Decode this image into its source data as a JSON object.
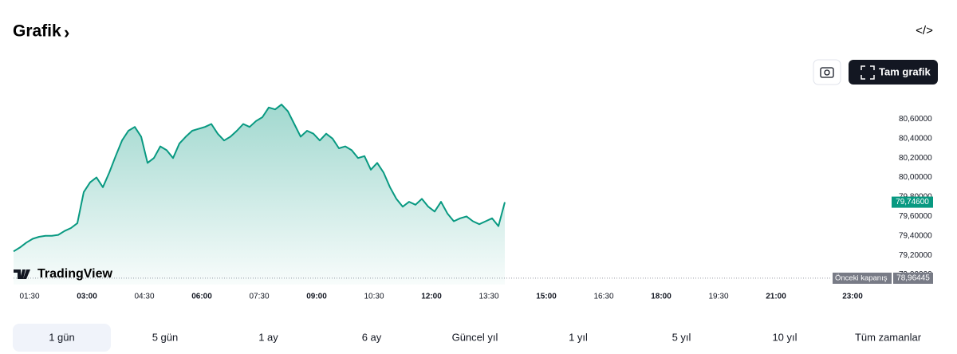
{
  "header": {
    "title": "Grafik",
    "chevron": "›",
    "code_icon": "</>"
  },
  "toolbar": {
    "full_chart": "Tam grafik"
  },
  "brand": "TradingView",
  "ranges": [
    "1 gün",
    "5 gün",
    "1 ay",
    "6 ay",
    "Güncel yıl",
    "1 yıl",
    "5 yıl",
    "10 yıl",
    "Tüm zamanlar"
  ],
  "selected_range": "1 gün",
  "chart_data": {
    "type": "area",
    "color": "#089981",
    "x": [
      "01:05",
      "01:15",
      "01:25",
      "01:35",
      "01:45",
      "01:55",
      "02:05",
      "02:15",
      "02:25",
      "02:35",
      "02:45",
      "02:55",
      "03:05",
      "03:15",
      "03:25",
      "03:35",
      "03:45",
      "03:55",
      "04:05",
      "04:15",
      "04:25",
      "04:35",
      "04:45",
      "04:55",
      "05:05",
      "05:15",
      "05:25",
      "05:35",
      "05:45",
      "05:55",
      "06:05",
      "06:15",
      "06:25",
      "06:35",
      "06:45",
      "06:55",
      "07:05",
      "07:15",
      "07:25",
      "07:35",
      "07:45",
      "07:55",
      "08:05",
      "08:15",
      "08:25",
      "08:35",
      "08:45",
      "08:55",
      "09:05",
      "09:15",
      "09:25",
      "09:35",
      "09:45",
      "09:55",
      "10:05",
      "10:15",
      "10:25",
      "10:35",
      "10:45",
      "10:55",
      "11:05",
      "11:15",
      "11:25",
      "11:35",
      "11:45",
      "11:55",
      "12:05",
      "12:15",
      "12:25",
      "12:35",
      "12:45",
      "12:55",
      "13:05",
      "13:15",
      "13:25",
      "13:35",
      "13:45",
      "13:55"
    ],
    "values": [
      79.24,
      79.28,
      79.33,
      79.37,
      79.39,
      79.4,
      79.4,
      79.41,
      79.45,
      79.48,
      79.53,
      79.85,
      79.95,
      80.0,
      79.9,
      80.05,
      80.22,
      80.38,
      80.48,
      80.52,
      80.42,
      80.15,
      80.2,
      80.32,
      80.28,
      80.2,
      80.35,
      80.42,
      80.48,
      80.5,
      80.52,
      80.55,
      80.45,
      80.38,
      80.42,
      80.48,
      80.55,
      80.52,
      80.58,
      80.62,
      80.72,
      80.7,
      80.75,
      80.68,
      80.55,
      80.42,
      80.48,
      80.45,
      80.38,
      80.45,
      80.4,
      80.3,
      80.32,
      80.28,
      80.2,
      80.22,
      80.08,
      80.15,
      80.05,
      79.9,
      79.78,
      79.7,
      79.75,
      79.72,
      79.78,
      79.7,
      79.65,
      79.75,
      79.63,
      79.55,
      79.58,
      79.6,
      79.55,
      79.52,
      79.55,
      79.58,
      79.5,
      79.746
    ],
    "last_value_label": "79,74600",
    "xlim": [
      "01:05",
      "23:40"
    ],
    "xticks": [
      "01:30",
      "03:00",
      "04:30",
      "06:00",
      "07:30",
      "09:00",
      "10:30",
      "12:00",
      "13:30",
      "15:00",
      "16:30",
      "18:00",
      "19:30",
      "21:00",
      "23:00"
    ],
    "ylim": [
      78.9,
      80.8
    ],
    "yticks": [
      {
        "value": 79.0,
        "label": "79,00000"
      },
      {
        "value": 79.2,
        "label": "79,20000"
      },
      {
        "value": 79.4,
        "label": "79,40000"
      },
      {
        "value": 79.6,
        "label": "79,60000"
      },
      {
        "value": 79.8,
        "label": "79,80000"
      },
      {
        "value": 80.0,
        "label": "80,00000"
      },
      {
        "value": 80.2,
        "label": "80,20000"
      },
      {
        "value": 80.4,
        "label": "80,40000"
      },
      {
        "value": 80.6,
        "label": "80,60000"
      }
    ],
    "reference": {
      "label": "Önceki kapanış",
      "value": 78.96445,
      "value_label": "78,96445"
    }
  }
}
